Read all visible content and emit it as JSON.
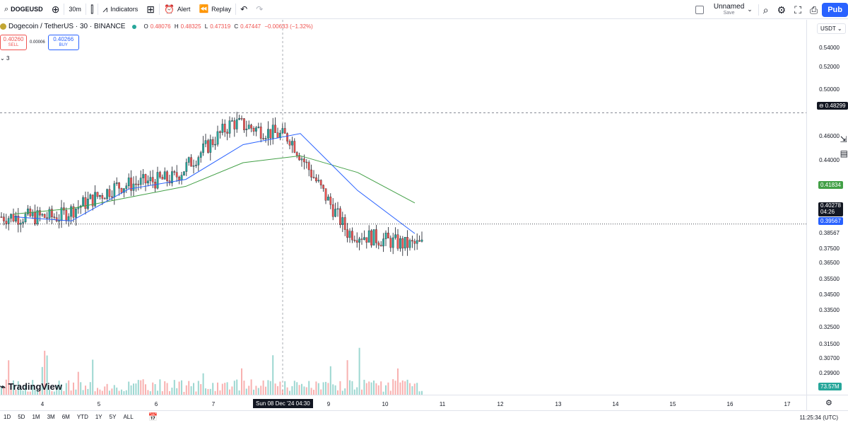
{
  "toolbar": {
    "symbol": "DOGEUSD",
    "interval": "30m",
    "indicators_label": "Indicators",
    "alert_label": "Alert",
    "replay_label": "Replay",
    "layout_name": "Unnamed",
    "layout_status": "Save",
    "publish_label": "Pub"
  },
  "legend": {
    "title": "Dogecoin / TetherUS · 30 · BINANCE",
    "o_key": "O",
    "o": "0.48076",
    "h_key": "H",
    "h": "0.48325",
    "l_key": "L",
    "l": "0.47319",
    "c_key": "C",
    "c": "0.47447",
    "change": "−0.00633 (−1.32%)"
  },
  "trade": {
    "sell_price": "0.40260",
    "sell_label": "SELL",
    "spread": "0.00006",
    "buy_price": "0.40266",
    "buy_label": "BUY",
    "indicator_count": "3"
  },
  "price_scale": {
    "currency": "USDT",
    "labels": [
      "0.54000",
      "0.52000",
      "0.50000",
      "0.46000",
      "0.44000",
      "0.38567",
      "0.37500",
      "0.36500",
      "0.35500",
      "0.34500",
      "0.33500",
      "0.32500",
      "0.31500",
      "0.30700",
      "0.29900"
    ],
    "crosshair_price": "0.48299",
    "ma_slow_value": "0.41834",
    "last_price": "0.40278",
    "countdown": "04:26",
    "ma_fast_value": "0.39567",
    "volume_value": "73.57M"
  },
  "time_axis": {
    "labels": [
      "4",
      "5",
      "6",
      "7",
      "9",
      "10",
      "11",
      "12",
      "13",
      "14",
      "15",
      "16",
      "17"
    ],
    "crosshair_time": "Sun 08 Dec '24  04:30"
  },
  "bottom": {
    "ranges": [
      "1D",
      "5D",
      "1M",
      "3M",
      "6M",
      "YTD",
      "1Y",
      "5Y",
      "ALL"
    ],
    "clock": "11:25:34 (UTC)"
  },
  "watermark": "TradingView",
  "colors": {
    "up": "#26a69a",
    "down": "#ef5350",
    "ma_fast": "#2962ff",
    "ma_slow": "#43a047",
    "accent": "#2962ff"
  },
  "chart_data": {
    "type": "candlestick",
    "title": "Dogecoin / TetherUS · 30 · BINANCE",
    "x": [
      "4",
      "5",
      "6",
      "7",
      "8",
      "9",
      "10",
      "11"
    ],
    "close_approx": [
      0.408,
      0.408,
      0.43,
      0.436,
      0.476,
      0.465,
      0.397,
      0.388
    ],
    "series": [
      {
        "name": "",
        "approx_values": [
          0.41,
          0.414,
          0.422,
          0.43,
          0.447,
          0.452,
          0.44,
          0.418
        ]
      },
      {
        "name": "",
        "approx_values": [
          0.408,
          0.405,
          0.428,
          0.435,
          0.46,
          0.468,
          0.427,
          0.396
        ]
      }
    ],
    "ylim": [
      0.29,
      0.55
    ],
    "last_price": 0.40278,
    "grid": false
  }
}
